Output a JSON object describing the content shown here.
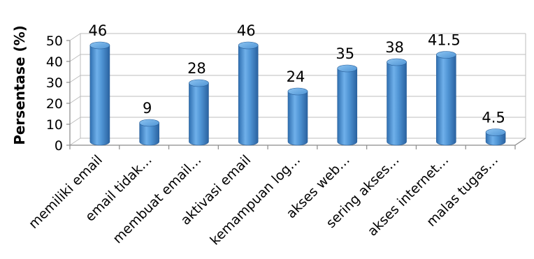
{
  "chart_data": {
    "type": "bar",
    "style": "3d-cylinder",
    "ylabel": "Persentase (%)",
    "xlabel": "",
    "ylim": [
      0,
      50
    ],
    "yticks": [
      0,
      10,
      20,
      30,
      40,
      50
    ],
    "bar_color": "#4f94d4",
    "categories": [
      "memiliki email",
      "email tidak…",
      "membuat email…",
      "aktivasi email",
      "kemampuan log…",
      "akses web…",
      "sering akses…",
      "akses internet…",
      "malas tugas…"
    ],
    "values": [
      46,
      9,
      28,
      46,
      24,
      35,
      38,
      41.5,
      4.5
    ],
    "data_labels": [
      "46",
      "9",
      "28",
      "46",
      "24",
      "35",
      "38",
      "41.5",
      "4.5"
    ]
  }
}
